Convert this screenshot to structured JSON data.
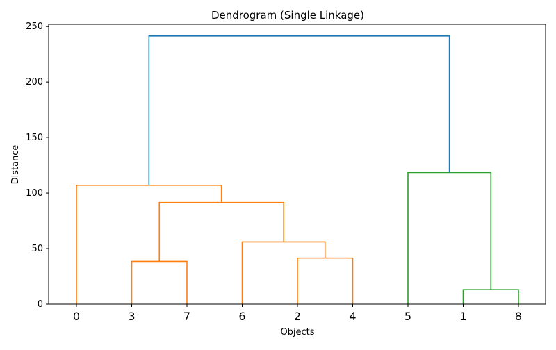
{
  "chart_data": {
    "type": "dendrogram",
    "title": "Dendrogram (Single Linkage)",
    "xlabel": "Objects",
    "ylabel": "Distance",
    "ylim": [
      0,
      252
    ],
    "yticks": [
      0,
      50,
      100,
      150,
      200,
      250
    ],
    "leaves": [
      "0",
      "3",
      "7",
      "6",
      "2",
      "4",
      "5",
      "1",
      "8"
    ],
    "colors": {
      "cluster_a": "#ff7f0e",
      "cluster_b": "#2ca02c",
      "above_threshold": "#1f77b4"
    },
    "merges": [
      {
        "left": "3",
        "right": "7",
        "distance": 38.5,
        "color": "cluster_a"
      },
      {
        "left": "2",
        "right": "4",
        "distance": 41.5,
        "color": "cluster_a"
      },
      {
        "left": "6",
        "right": "(2,4)",
        "distance": 56,
        "color": "cluster_a"
      },
      {
        "left": "(3,7)",
        "right": "(6,2,4)",
        "distance": 91.5,
        "color": "cluster_a"
      },
      {
        "left": "0",
        "right": "(3,7,6,2,4)",
        "distance": 107,
        "color": "cluster_a"
      },
      {
        "left": "1",
        "right": "8",
        "distance": 13,
        "color": "cluster_b"
      },
      {
        "left": "5",
        "right": "(1,8)",
        "distance": 118.5,
        "color": "cluster_b"
      },
      {
        "left": "(0,3,7,6,2,4)",
        "right": "(5,1,8)",
        "distance": 241.5,
        "color": "above_threshold"
      }
    ]
  }
}
